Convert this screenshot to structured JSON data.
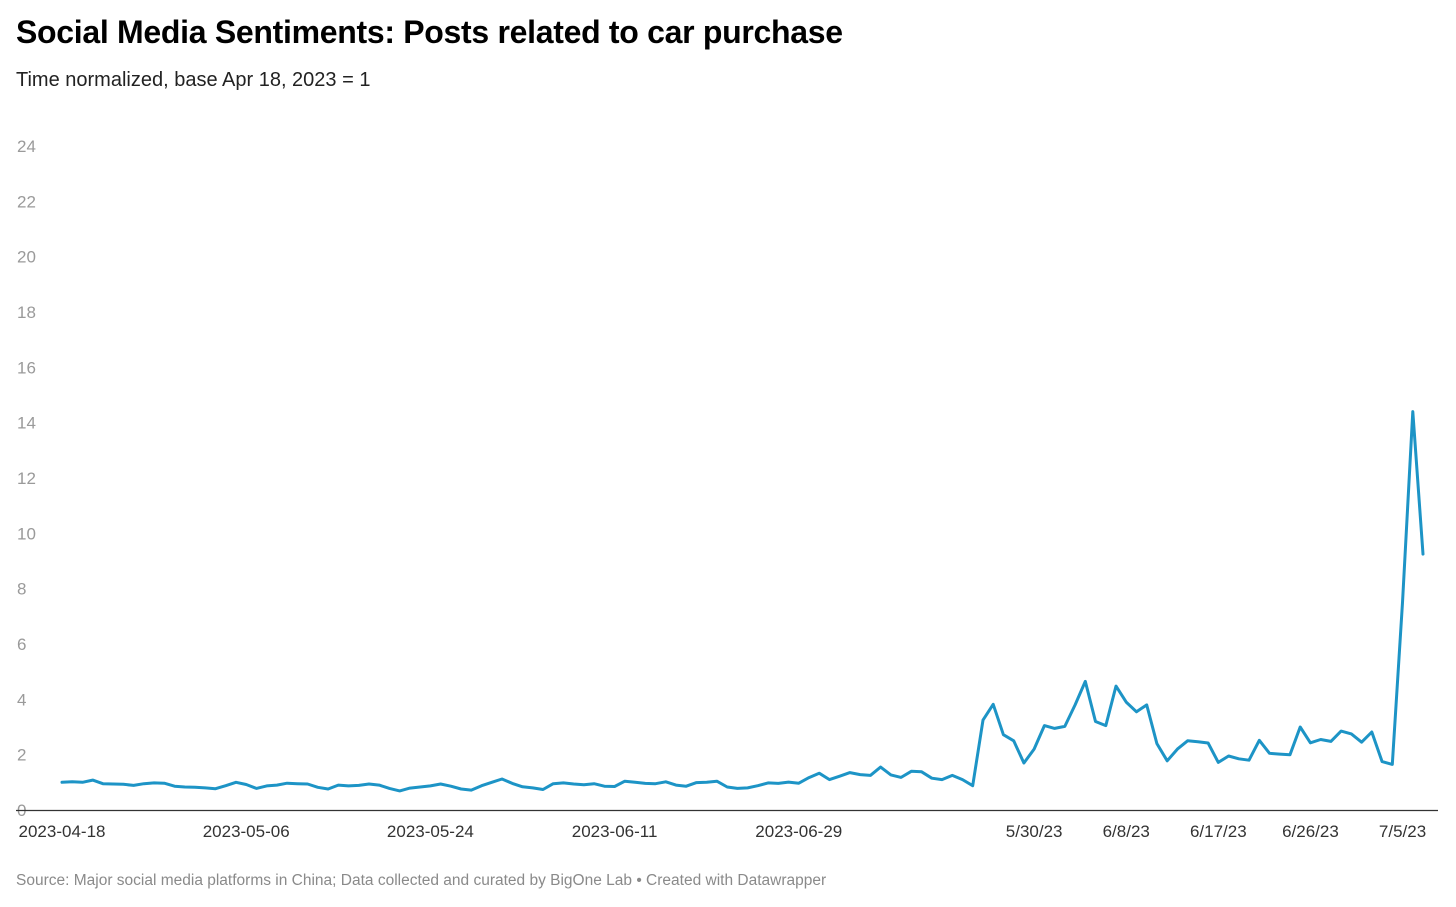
{
  "header": {
    "title": "Social Media Sentiments: Posts related to car purchase",
    "subtitle": "Time normalized, base Apr 18, 2023 = 1"
  },
  "footer": {
    "source": "Source: Major social media platforms in China; Data collected and curated by BigOne Lab • Created with Datawrapper"
  },
  "chart_data": {
    "type": "line",
    "title": "Social Media Sentiments: Posts related to car purchase",
    "subtitle": "Time normalized, base Apr 18, 2023 = 1",
    "xlabel": "",
    "ylabel": "",
    "ylim": [
      0,
      24
    ],
    "yticks": [
      0,
      2,
      4,
      6,
      8,
      10,
      12,
      14,
      16,
      18,
      20,
      22,
      24
    ],
    "grid": false,
    "legend": "none",
    "line_color": "#1d94c6",
    "x_tick_labels": [
      {
        "label": "2023-04-18",
        "index": 0
      },
      {
        "label": "2023-05-06",
        "index": 18
      },
      {
        "label": "2023-05-24",
        "index": 36
      },
      {
        "label": "2023-06-11",
        "index": 54
      },
      {
        "label": "2023-06-29",
        "index": 72
      },
      {
        "label": "5/30/23",
        "index": 95
      },
      {
        "label": "6/8/23",
        "index": 104
      },
      {
        "label": "6/17/23",
        "index": 113
      },
      {
        "label": "6/26/23",
        "index": 122
      },
      {
        "label": "7/5/23",
        "index": 131
      }
    ],
    "series": [
      {
        "values": [
          1.0,
          1.02,
          1.0,
          1.08,
          0.95,
          0.94,
          0.93,
          0.89,
          0.95,
          0.98,
          0.97,
          0.86,
          0.83,
          0.82,
          0.8,
          0.77,
          0.88,
          1.0,
          0.92,
          0.78,
          0.87,
          0.9,
          0.97,
          0.95,
          0.94,
          0.82,
          0.76,
          0.9,
          0.87,
          0.89,
          0.94,
          0.9,
          0.78,
          0.69,
          0.79,
          0.83,
          0.87,
          0.94,
          0.86,
          0.76,
          0.72,
          0.88,
          1.0,
          1.12,
          0.96,
          0.84,
          0.8,
          0.74,
          0.95,
          0.98,
          0.94,
          0.91,
          0.95,
          0.86,
          0.85,
          1.04,
          1.0,
          0.96,
          0.95,
          1.02,
          0.9,
          0.86,
          0.99,
          1.0,
          1.04,
          0.83,
          0.78,
          0.8,
          0.88,
          0.98,
          0.96,
          1.01,
          0.97,
          1.17,
          1.33,
          1.1,
          1.22,
          1.35,
          1.28,
          1.25,
          1.55,
          1.27,
          1.18,
          1.4,
          1.38,
          1.15,
          1.1,
          1.25,
          1.1,
          0.88,
          3.25,
          3.82,
          2.72,
          2.5,
          1.7,
          2.2,
          3.05,
          2.95,
          3.02,
          3.8,
          4.65,
          3.2,
          3.05,
          4.48,
          3.9,
          3.55,
          3.8,
          2.4,
          1.78,
          2.2,
          2.5,
          2.47,
          2.42,
          1.72,
          1.95,
          1.85,
          1.8,
          2.52,
          2.05,
          2.02,
          2.0,
          3.0,
          2.43,
          2.55,
          2.48,
          2.85,
          2.75,
          2.45,
          2.82,
          1.75,
          1.65,
          7.5,
          14.4,
          9.25
        ]
      }
    ]
  }
}
